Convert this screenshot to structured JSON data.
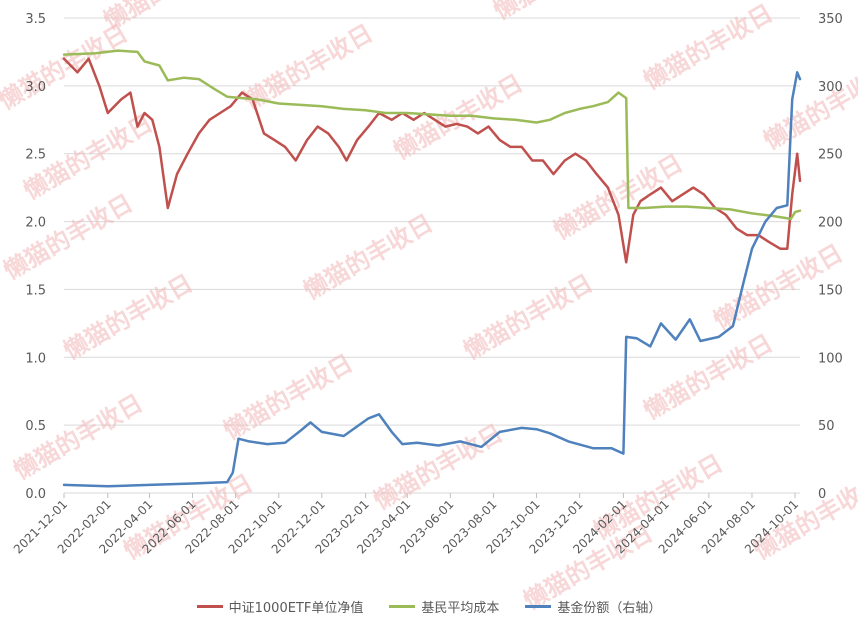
{
  "chart_data": {
    "type": "line",
    "title": "",
    "watermark": "懒猫的丰收日",
    "colors": {
      "nav": "#c0504d",
      "cost": "#9bbb59",
      "shares": "#4f81bd",
      "grid": "#d9d9d9"
    },
    "left_axis": {
      "ylim": [
        0,
        3.5
      ],
      "ticks": [
        "0.0",
        "0.5",
        "1.0",
        "1.5",
        "2.0",
        "2.5",
        "3.0",
        "3.5"
      ]
    },
    "right_axis": {
      "ylim": [
        0,
        350
      ],
      "ticks": [
        "0",
        "50",
        "100",
        "150",
        "200",
        "250",
        "300",
        "350"
      ]
    },
    "x_ticks": [
      "2021-12-01",
      "2022-02-01",
      "2022-04-01",
      "2022-06-01",
      "2022-08-01",
      "2022-10-01",
      "2022-12-01",
      "2023-02-01",
      "2023-04-01",
      "2023-06-01",
      "2023-08-01",
      "2023-10-01",
      "2023-12-01",
      "2024-02-01",
      "2024-04-01",
      "2024-06-01",
      "2024-08-01",
      "2024-10-01"
    ],
    "x_range": [
      "2021-12-01",
      "2024-10-08"
    ],
    "series": [
      {
        "name": "中证1000ETF单位净值",
        "axis": "left",
        "color": "#c0504d",
        "points": [
          [
            "2021-12-01",
            3.2
          ],
          [
            "2021-12-20",
            3.1
          ],
          [
            "2022-01-05",
            3.2
          ],
          [
            "2022-01-20",
            3.0
          ],
          [
            "2022-02-01",
            2.8
          ],
          [
            "2022-02-20",
            2.9
          ],
          [
            "2022-03-05",
            2.95
          ],
          [
            "2022-03-15",
            2.7
          ],
          [
            "2022-03-25",
            2.8
          ],
          [
            "2022-04-05",
            2.75
          ],
          [
            "2022-04-15",
            2.55
          ],
          [
            "2022-04-27",
            2.1
          ],
          [
            "2022-05-10",
            2.35
          ],
          [
            "2022-05-25",
            2.5
          ],
          [
            "2022-06-10",
            2.65
          ],
          [
            "2022-06-25",
            2.75
          ],
          [
            "2022-07-10",
            2.8
          ],
          [
            "2022-07-25",
            2.85
          ],
          [
            "2022-08-10",
            2.95
          ],
          [
            "2022-08-25",
            2.9
          ],
          [
            "2022-09-10",
            2.65
          ],
          [
            "2022-09-25",
            2.6
          ],
          [
            "2022-10-10",
            2.55
          ],
          [
            "2022-10-25",
            2.45
          ],
          [
            "2022-11-10",
            2.6
          ],
          [
            "2022-11-25",
            2.7
          ],
          [
            "2022-12-10",
            2.65
          ],
          [
            "2022-12-25",
            2.55
          ],
          [
            "2023-01-05",
            2.45
          ],
          [
            "2023-01-20",
            2.6
          ],
          [
            "2023-02-05",
            2.7
          ],
          [
            "2023-02-20",
            2.8
          ],
          [
            "2023-03-10",
            2.75
          ],
          [
            "2023-03-25",
            2.8
          ],
          [
            "2023-04-10",
            2.75
          ],
          [
            "2023-04-25",
            2.8
          ],
          [
            "2023-05-10",
            2.75
          ],
          [
            "2023-05-25",
            2.7
          ],
          [
            "2023-06-10",
            2.72
          ],
          [
            "2023-06-25",
            2.7
          ],
          [
            "2023-07-10",
            2.65
          ],
          [
            "2023-07-25",
            2.7
          ],
          [
            "2023-08-10",
            2.6
          ],
          [
            "2023-08-25",
            2.55
          ],
          [
            "2023-09-10",
            2.55
          ],
          [
            "2023-09-25",
            2.45
          ],
          [
            "2023-10-10",
            2.45
          ],
          [
            "2023-10-25",
            2.35
          ],
          [
            "2023-11-10",
            2.45
          ],
          [
            "2023-11-25",
            2.5
          ],
          [
            "2023-12-10",
            2.45
          ],
          [
            "2023-12-25",
            2.35
          ],
          [
            "2024-01-10",
            2.25
          ],
          [
            "2024-01-25",
            2.05
          ],
          [
            "2024-02-05",
            1.7
          ],
          [
            "2024-02-15",
            2.05
          ],
          [
            "2024-02-25",
            2.15
          ],
          [
            "2024-03-10",
            2.2
          ],
          [
            "2024-03-25",
            2.25
          ],
          [
            "2024-04-10",
            2.15
          ],
          [
            "2024-04-25",
            2.2
          ],
          [
            "2024-05-10",
            2.25
          ],
          [
            "2024-05-25",
            2.2
          ],
          [
            "2024-06-10",
            2.1
          ],
          [
            "2024-06-25",
            2.05
          ],
          [
            "2024-07-10",
            1.95
          ],
          [
            "2024-07-25",
            1.9
          ],
          [
            "2024-08-10",
            1.9
          ],
          [
            "2024-08-25",
            1.85
          ],
          [
            "2024-09-10",
            1.8
          ],
          [
            "2024-09-20",
            1.8
          ],
          [
            "2024-09-27",
            2.2
          ],
          [
            "2024-10-04",
            2.5
          ],
          [
            "2024-10-08",
            2.3
          ]
        ]
      },
      {
        "name": "基民平均成本",
        "axis": "left",
        "color": "#9bbb59",
        "points": [
          [
            "2021-12-01",
            3.23
          ],
          [
            "2022-01-15",
            3.24
          ],
          [
            "2022-02-15",
            3.26
          ],
          [
            "2022-03-15",
            3.25
          ],
          [
            "2022-03-25",
            3.18
          ],
          [
            "2022-04-15",
            3.15
          ],
          [
            "2022-04-27",
            3.04
          ],
          [
            "2022-05-20",
            3.06
          ],
          [
            "2022-06-10",
            3.05
          ],
          [
            "2022-07-01",
            2.98
          ],
          [
            "2022-07-20",
            2.92
          ],
          [
            "2022-08-10",
            2.91
          ],
          [
            "2022-09-01",
            2.9
          ],
          [
            "2022-10-01",
            2.87
          ],
          [
            "2022-11-01",
            2.86
          ],
          [
            "2022-12-01",
            2.85
          ],
          [
            "2023-01-01",
            2.83
          ],
          [
            "2023-02-01",
            2.82
          ],
          [
            "2023-03-01",
            2.8
          ],
          [
            "2023-04-01",
            2.8
          ],
          [
            "2023-05-01",
            2.79
          ],
          [
            "2023-06-01",
            2.78
          ],
          [
            "2023-07-01",
            2.78
          ],
          [
            "2023-08-01",
            2.76
          ],
          [
            "2023-09-01",
            2.75
          ],
          [
            "2023-10-01",
            2.73
          ],
          [
            "2023-10-20",
            2.75
          ],
          [
            "2023-11-10",
            2.8
          ],
          [
            "2023-12-01",
            2.83
          ],
          [
            "2023-12-20",
            2.85
          ],
          [
            "2024-01-10",
            2.88
          ],
          [
            "2024-01-25",
            2.95
          ],
          [
            "2024-02-05",
            2.91
          ],
          [
            "2024-02-08",
            2.1
          ],
          [
            "2024-03-01",
            2.1
          ],
          [
            "2024-04-01",
            2.11
          ],
          [
            "2024-05-01",
            2.11
          ],
          [
            "2024-06-01",
            2.1
          ],
          [
            "2024-07-01",
            2.09
          ],
          [
            "2024-08-01",
            2.06
          ],
          [
            "2024-09-01",
            2.04
          ],
          [
            "2024-09-25",
            2.02
          ],
          [
            "2024-10-01",
            2.07
          ],
          [
            "2024-10-08",
            2.08
          ]
        ]
      },
      {
        "name": "基金份额（右轴）",
        "axis": "right",
        "color": "#4f81bd",
        "points": [
          [
            "2021-12-01",
            6
          ],
          [
            "2022-02-01",
            5
          ],
          [
            "2022-04-01",
            6
          ],
          [
            "2022-06-01",
            7
          ],
          [
            "2022-07-20",
            8
          ],
          [
            "2022-07-28",
            15
          ],
          [
            "2022-08-05",
            40
          ],
          [
            "2022-08-20",
            38
          ],
          [
            "2022-09-15",
            36
          ],
          [
            "2022-10-10",
            37
          ],
          [
            "2022-11-01",
            46
          ],
          [
            "2022-11-15",
            52
          ],
          [
            "2022-12-01",
            45
          ],
          [
            "2023-01-01",
            42
          ],
          [
            "2023-02-05",
            55
          ],
          [
            "2023-02-20",
            58
          ],
          [
            "2023-03-10",
            45
          ],
          [
            "2023-03-25",
            36
          ],
          [
            "2023-04-15",
            37
          ],
          [
            "2023-05-15",
            35
          ],
          [
            "2023-06-15",
            38
          ],
          [
            "2023-07-15",
            34
          ],
          [
            "2023-08-10",
            45
          ],
          [
            "2023-09-10",
            48
          ],
          [
            "2023-10-01",
            47
          ],
          [
            "2023-10-20",
            44
          ],
          [
            "2023-11-15",
            38
          ],
          [
            "2023-12-20",
            33
          ],
          [
            "2024-01-15",
            33
          ],
          [
            "2024-02-01",
            29
          ],
          [
            "2024-02-05",
            115
          ],
          [
            "2024-02-20",
            114
          ],
          [
            "2024-03-10",
            108
          ],
          [
            "2024-03-25",
            125
          ],
          [
            "2024-04-15",
            113
          ],
          [
            "2024-05-05",
            128
          ],
          [
            "2024-05-20",
            112
          ],
          [
            "2024-06-15",
            115
          ],
          [
            "2024-07-05",
            123
          ],
          [
            "2024-07-20",
            155
          ],
          [
            "2024-08-01",
            180
          ],
          [
            "2024-08-20",
            200
          ],
          [
            "2024-09-05",
            210
          ],
          [
            "2024-09-20",
            212
          ],
          [
            "2024-09-27",
            290
          ],
          [
            "2024-10-04",
            310
          ],
          [
            "2024-10-08",
            305
          ]
        ]
      }
    ]
  }
}
